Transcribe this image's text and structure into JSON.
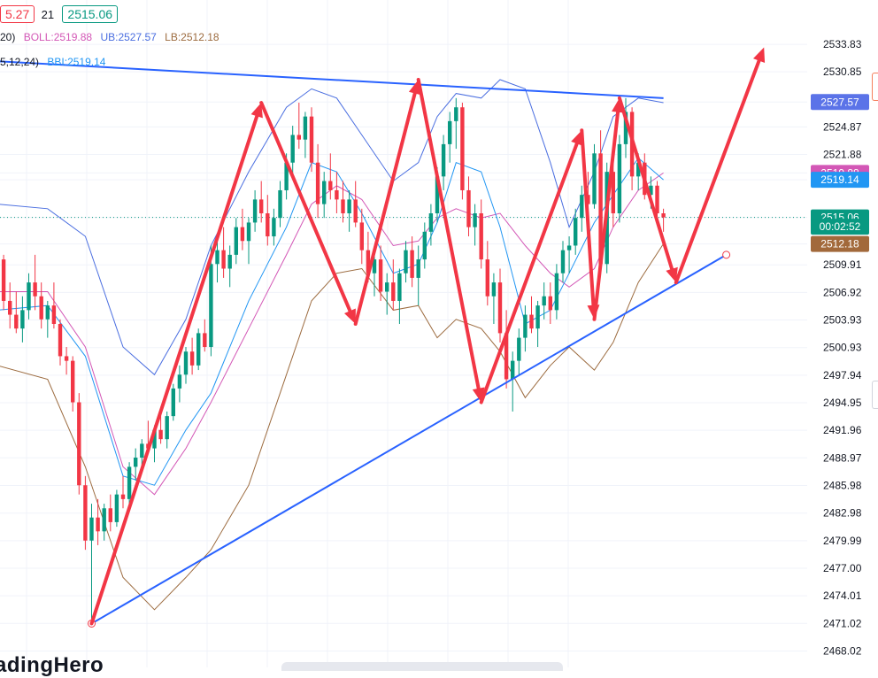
{
  "header": {
    "price_box_red": "5.27",
    "interval": "21",
    "price_box_green": "2515.06",
    "boll_params": "20)",
    "boll": "BOLL:2519.88",
    "ub": "UB:2527.57",
    "lb": "LB:2512.18",
    "bbi_params": "5,12,24)",
    "bbi": "BBI:2519.14"
  },
  "watermark": "adingHero",
  "colors": {
    "up": "#089981",
    "down": "#f23645",
    "boll_mid": "#d357b6",
    "boll_upper": "#4a6ee0",
    "boll_lower": "#9c6b3f",
    "bbi": "#2196f3",
    "trendline": "#2962ff",
    "annotation": "#f23645"
  },
  "chart_data": {
    "type": "candlestick",
    "y_ticks": [
      "2533.83",
      "2530.85",
      "2527.57",
      "2524.87",
      "2521.88",
      "2519.88",
      "2519.14",
      "2515.06",
      "2512.18",
      "2509.91",
      "2506.92",
      "2503.93",
      "2500.93",
      "2497.94",
      "2494.95",
      "2491.96",
      "2488.97",
      "2485.98",
      "2482.98",
      "2479.99",
      "2477.00",
      "2474.01",
      "2471.02",
      "2468.02"
    ],
    "price_labels": [
      {
        "value": 2527.57,
        "text": "2527.57",
        "color": "#5b73e8"
      },
      {
        "value": 2519.88,
        "text": "2519.88",
        "color": "#d357b6"
      },
      {
        "value": 2519.14,
        "text": "2519.14",
        "color": "#2196f3"
      },
      {
        "value": 2515.06,
        "text": "2515.06",
        "color": "#089981"
      },
      {
        "value": 2514.05,
        "text": "00:02:52",
        "color": "#089981"
      },
      {
        "value": 2512.18,
        "text": "2512.18",
        "color": "#a2693b"
      }
    ],
    "ylim": [
      2467.3,
      2534.8
    ],
    "last_price": 2515.06,
    "grid": true,
    "candles": [
      [
        2508.0,
        2512.0,
        2507.0,
        2510.5
      ],
      [
        2510.5,
        2511.0,
        2505.0,
        2506.0
      ],
      [
        2506.0,
        2508.0,
        2503.0,
        2504.5
      ],
      [
        2504.5,
        2507.0,
        2502.5,
        2503.0
      ],
      [
        2503.0,
        2506.5,
        2501.5,
        2505.0
      ],
      [
        2505.0,
        2509.0,
        2504.0,
        2508.0
      ],
      [
        2508.0,
        2511.0,
        2505.0,
        2506.5
      ],
      [
        2506.5,
        2508.0,
        2503.0,
        2504.0
      ],
      [
        2504.0,
        2506.0,
        2502.0,
        2505.5
      ],
      [
        2505.5,
        2508.0,
        2503.0,
        2503.5
      ],
      [
        2503.5,
        2504.0,
        2499.0,
        2500.0
      ],
      [
        2500.0,
        2501.0,
        2498.0,
        2499.5
      ],
      [
        2499.5,
        2500.0,
        2494.0,
        2495.0
      ],
      [
        2495.0,
        2496.0,
        2485.0,
        2486.0
      ],
      [
        2486.0,
        2487.0,
        2479.0,
        2480.0
      ],
      [
        2480.0,
        2484.0,
        2471.5,
        2482.5
      ],
      [
        2482.5,
        2484.5,
        2479.5,
        2481.0
      ],
      [
        2481.0,
        2484.0,
        2480.0,
        2483.5
      ],
      [
        2483.5,
        2485.0,
        2481.0,
        2482.0
      ],
      [
        2482.0,
        2485.5,
        2481.5,
        2485.0
      ],
      [
        2485.0,
        2487.0,
        2483.5,
        2484.5
      ],
      [
        2484.5,
        2488.5,
        2484.0,
        2488.0
      ],
      [
        2488.0,
        2490.0,
        2486.5,
        2489.0
      ],
      [
        2489.0,
        2491.0,
        2487.5,
        2490.5
      ],
      [
        2490.5,
        2493.0,
        2489.5,
        2490.0
      ],
      [
        2490.0,
        2492.5,
        2488.5,
        2492.0
      ],
      [
        2492.0,
        2494.5,
        2490.5,
        2491.0
      ],
      [
        2491.0,
        2494.0,
        2490.0,
        2493.5
      ],
      [
        2493.5,
        2497.0,
        2493.0,
        2496.5
      ],
      [
        2496.5,
        2499.0,
        2495.0,
        2498.0
      ],
      [
        2498.0,
        2501.0,
        2497.0,
        2500.5
      ],
      [
        2500.5,
        2502.0,
        2498.0,
        2499.0
      ],
      [
        2499.0,
        2503.0,
        2498.5,
        2502.5
      ],
      [
        2502.5,
        2504.0,
        2500.5,
        2501.0
      ],
      [
        2501.0,
        2512.0,
        2500.0,
        2510.0
      ],
      [
        2510.0,
        2513.0,
        2508.0,
        2511.5
      ],
      [
        2511.5,
        2514.0,
        2508.5,
        2509.5
      ],
      [
        2509.5,
        2512.0,
        2507.5,
        2511.0
      ],
      [
        2511.0,
        2515.0,
        2510.0,
        2514.0
      ],
      [
        2514.0,
        2516.0,
        2511.5,
        2512.5
      ],
      [
        2512.5,
        2515.0,
        2510.0,
        2514.5
      ],
      [
        2514.5,
        2518.0,
        2513.5,
        2517.0
      ],
      [
        2517.0,
        2519.0,
        2514.5,
        2515.5
      ],
      [
        2515.5,
        2517.5,
        2512.0,
        2513.0
      ],
      [
        2513.0,
        2516.0,
        2512.0,
        2515.0
      ],
      [
        2515.0,
        2519.0,
        2514.0,
        2518.0
      ],
      [
        2518.0,
        2522.0,
        2517.0,
        2521.0
      ],
      [
        2521.0,
        2525.0,
        2519.5,
        2524.0
      ],
      [
        2524.0,
        2527.5,
        2522.5,
        2523.5
      ],
      [
        2523.5,
        2526.5,
        2521.5,
        2526.0
      ],
      [
        2526.0,
        2527.0,
        2520.0,
        2521.0
      ],
      [
        2521.0,
        2523.0,
        2515.0,
        2516.5
      ],
      [
        2516.5,
        2520.0,
        2515.0,
        2519.0
      ],
      [
        2519.0,
        2522.0,
        2517.0,
        2518.0
      ],
      [
        2518.0,
        2520.0,
        2515.5,
        2517.0
      ],
      [
        2517.0,
        2519.0,
        2514.5,
        2515.5
      ],
      [
        2515.5,
        2518.0,
        2513.5,
        2517.0
      ],
      [
        2517.0,
        2519.0,
        2514.0,
        2514.5
      ],
      [
        2514.5,
        2516.0,
        2510.0,
        2511.5
      ],
      [
        2511.5,
        2513.5,
        2508.0,
        2509.0
      ],
      [
        2509.0,
        2511.5,
        2506.5,
        2510.5
      ],
      [
        2510.5,
        2512.0,
        2506.0,
        2507.0
      ],
      [
        2507.0,
        2509.0,
        2504.5,
        2508.0
      ],
      [
        2508.0,
        2510.5,
        2505.0,
        2506.0
      ],
      [
        2506.0,
        2509.5,
        2503.5,
        2509.0
      ],
      [
        2509.0,
        2512.5,
        2508.0,
        2511.5
      ],
      [
        2511.5,
        2513.0,
        2507.5,
        2508.5
      ],
      [
        2508.5,
        2512.0,
        2505.5,
        2510.5
      ],
      [
        2510.5,
        2514.5,
        2509.5,
        2513.5
      ],
      [
        2513.5,
        2516.5,
        2512.0,
        2515.5
      ],
      [
        2515.5,
        2520.5,
        2514.5,
        2519.5
      ],
      [
        2519.5,
        2524.0,
        2518.0,
        2523.0
      ],
      [
        2523.0,
        2526.5,
        2521.0,
        2525.5
      ],
      [
        2525.5,
        2528.0,
        2522.5,
        2527.0
      ],
      [
        2527.0,
        2527.5,
        2517.0,
        2518.0
      ],
      [
        2518.0,
        2519.5,
        2513.0,
        2514.0
      ],
      [
        2514.0,
        2516.5,
        2512.0,
        2515.5
      ],
      [
        2515.5,
        2517.0,
        2509.5,
        2510.5
      ],
      [
        2510.5,
        2512.5,
        2505.5,
        2506.5
      ],
      [
        2506.5,
        2509.0,
        2503.5,
        2508.0
      ],
      [
        2508.0,
        2509.5,
        2501.5,
        2502.5
      ],
      [
        2502.5,
        2505.0,
        2496.5,
        2497.5
      ],
      [
        2497.5,
        2500.5,
        2494.0,
        2499.5
      ],
      [
        2499.5,
        2503.0,
        2498.0,
        2502.0
      ],
      [
        2502.0,
        2505.5,
        2500.5,
        2504.5
      ],
      [
        2504.5,
        2506.5,
        2502.5,
        2503.0
      ],
      [
        2503.0,
        2506.0,
        2501.0,
        2505.5
      ],
      [
        2505.5,
        2508.0,
        2504.0,
        2506.5
      ],
      [
        2506.5,
        2508.0,
        2503.5,
        2505.0
      ],
      [
        2505.0,
        2510.0,
        2504.0,
        2509.0
      ],
      [
        2509.0,
        2512.5,
        2508.0,
        2511.5
      ],
      [
        2511.5,
        2513.0,
        2509.0,
        2512.0
      ],
      [
        2512.0,
        2516.0,
        2511.0,
        2515.0
      ],
      [
        2515.0,
        2518.5,
        2513.5,
        2517.5
      ],
      [
        2517.5,
        2520.0,
        2515.5,
        2516.5
      ],
      [
        2516.5,
        2523.0,
        2516.0,
        2522.0
      ],
      [
        2522.0,
        2524.5,
        2509.0,
        2510.0
      ],
      [
        2510.0,
        2521.0,
        2509.0,
        2520.0
      ],
      [
        2520.0,
        2522.5,
        2514.0,
        2515.5
      ],
      [
        2515.5,
        2524.0,
        2514.5,
        2523.0
      ],
      [
        2523.0,
        2528.0,
        2521.5,
        2526.5
      ],
      [
        2526.5,
        2527.0,
        2518.0,
        2519.5
      ],
      [
        2519.5,
        2522.0,
        2518.0,
        2521.0
      ],
      [
        2521.0,
        2522.0,
        2517.0,
        2517.5
      ],
      [
        2517.5,
        2519.5,
        2516.0,
        2518.5
      ],
      [
        2518.5,
        2519.0,
        2515.0,
        2515.5
      ],
      [
        2515.5,
        2516.0,
        2513.5,
        2515.06
      ]
    ],
    "series": [
      {
        "name": "UB",
        "color": "#4a6ee0",
        "points": [
          [
            0,
            2516.5
          ],
          [
            8,
            2516.0
          ],
          [
            14,
            2513.0
          ],
          [
            20,
            2501.0
          ],
          [
            25,
            2498.0
          ],
          [
            30,
            2504.0
          ],
          [
            34,
            2512.0
          ],
          [
            40,
            2520.0
          ],
          [
            46,
            2527.0
          ],
          [
            50,
            2529.0
          ],
          [
            54,
            2528.0
          ],
          [
            58,
            2524.0
          ],
          [
            63,
            2519.0
          ],
          [
            67,
            2521.0
          ],
          [
            70,
            2526.0
          ],
          [
            73,
            2528.5
          ],
          [
            77,
            2528.0
          ],
          [
            80,
            2530.0
          ],
          [
            84,
            2529.0
          ],
          [
            88,
            2521.0
          ],
          [
            91,
            2514.0
          ],
          [
            95,
            2520.0
          ],
          [
            98,
            2526.0
          ],
          [
            102,
            2528.0
          ],
          [
            106,
            2527.5
          ]
        ]
      },
      {
        "name": "LB",
        "color": "#9c6b3f",
        "points": [
          [
            0,
            2499.0
          ],
          [
            8,
            2497.5
          ],
          [
            14,
            2488.0
          ],
          [
            20,
            2476.0
          ],
          [
            25,
            2472.5
          ],
          [
            30,
            2476.0
          ],
          [
            34,
            2479.0
          ],
          [
            40,
            2486.0
          ],
          [
            46,
            2498.0
          ],
          [
            50,
            2506.0
          ],
          [
            54,
            2509.0
          ],
          [
            58,
            2509.5
          ],
          [
            63,
            2505.0
          ],
          [
            67,
            2505.5
          ],
          [
            70,
            2502.0
          ],
          [
            73,
            2504.0
          ],
          [
            77,
            2503.0
          ],
          [
            80,
            2500.5
          ],
          [
            84,
            2495.5
          ],
          [
            88,
            2499.0
          ],
          [
            91,
            2501.0
          ],
          [
            95,
            2498.5
          ],
          [
            98,
            2501.5
          ],
          [
            102,
            2508.0
          ],
          [
            106,
            2512.2
          ]
        ]
      },
      {
        "name": "BOLL",
        "color": "#d357b6",
        "points": [
          [
            0,
            2507.0
          ],
          [
            8,
            2507.0
          ],
          [
            14,
            2501.0
          ],
          [
            20,
            2488.0
          ],
          [
            25,
            2485.0
          ],
          [
            30,
            2490.0
          ],
          [
            34,
            2495.0
          ],
          [
            40,
            2503.0
          ],
          [
            46,
            2511.0
          ],
          [
            50,
            2516.5
          ],
          [
            54,
            2518.5
          ],
          [
            58,
            2517.0
          ],
          [
            63,
            2512.0
          ],
          [
            67,
            2512.5
          ],
          [
            70,
            2515.0
          ],
          [
            73,
            2516.0
          ],
          [
            77,
            2515.0
          ],
          [
            80,
            2515.5
          ],
          [
            84,
            2512.0
          ],
          [
            88,
            2509.0
          ],
          [
            91,
            2507.5
          ],
          [
            95,
            2509.5
          ],
          [
            98,
            2514.0
          ],
          [
            102,
            2518.0
          ],
          [
            106,
            2519.88
          ]
        ]
      },
      {
        "name": "BBI",
        "color": "#2196f3",
        "points": [
          [
            0,
            2505.0
          ],
          [
            8,
            2505.5
          ],
          [
            14,
            2500.0
          ],
          [
            20,
            2487.0
          ],
          [
            25,
            2486.0
          ],
          [
            30,
            2492.0
          ],
          [
            34,
            2496.0
          ],
          [
            40,
            2506.0
          ],
          [
            46,
            2514.0
          ],
          [
            50,
            2521.0
          ],
          [
            54,
            2520.0
          ],
          [
            58,
            2515.5
          ],
          [
            63,
            2509.0
          ],
          [
            67,
            2510.0
          ],
          [
            70,
            2514.5
          ],
          [
            73,
            2521.0
          ],
          [
            77,
            2520.0
          ],
          [
            80,
            2514.0
          ],
          [
            84,
            2503.5
          ],
          [
            88,
            2505.0
          ],
          [
            91,
            2509.0
          ],
          [
            95,
            2514.5
          ],
          [
            98,
            2517.5
          ],
          [
            102,
            2521.5
          ],
          [
            106,
            2519.14
          ]
        ]
      }
    ],
    "trendlines": [
      {
        "name": "resistance",
        "from": [
          0,
          2532.0
        ],
        "to": [
          106,
          2528.0
        ],
        "color": "#2962ff"
      },
      {
        "name": "support",
        "from": [
          15,
          2471.0
        ],
        "to": [
          116,
          2511.0
        ],
        "color": "#2962ff",
        "end_marker": true
      }
    ],
    "annotation_arrows": [
      [
        [
          15,
          2471.0
        ],
        [
          42,
          2527.5
        ]
      ],
      [
        [
          42,
          2527.5
        ],
        [
          57,
          2503.5
        ]
      ],
      [
        [
          57,
          2503.5
        ],
        [
          67,
          2530.0
        ]
      ],
      [
        [
          67,
          2530.0
        ],
        [
          77,
          2495.0
        ]
      ],
      [
        [
          77,
          2495.0
        ],
        [
          93,
          2524.5
        ]
      ],
      [
        [
          93,
          2524.5
        ],
        [
          95,
          2504.0
        ]
      ],
      [
        [
          95,
          2504.0
        ],
        [
          99,
          2528.0
        ]
      ],
      [
        [
          99,
          2528.0
        ],
        [
          108,
          2508.0
        ]
      ],
      [
        [
          108,
          2508.0
        ],
        [
          122,
          2533.5
        ]
      ]
    ],
    "marker_circles": [
      [
        15,
        2471.0
      ],
      [
        116,
        2511.0
      ]
    ]
  }
}
